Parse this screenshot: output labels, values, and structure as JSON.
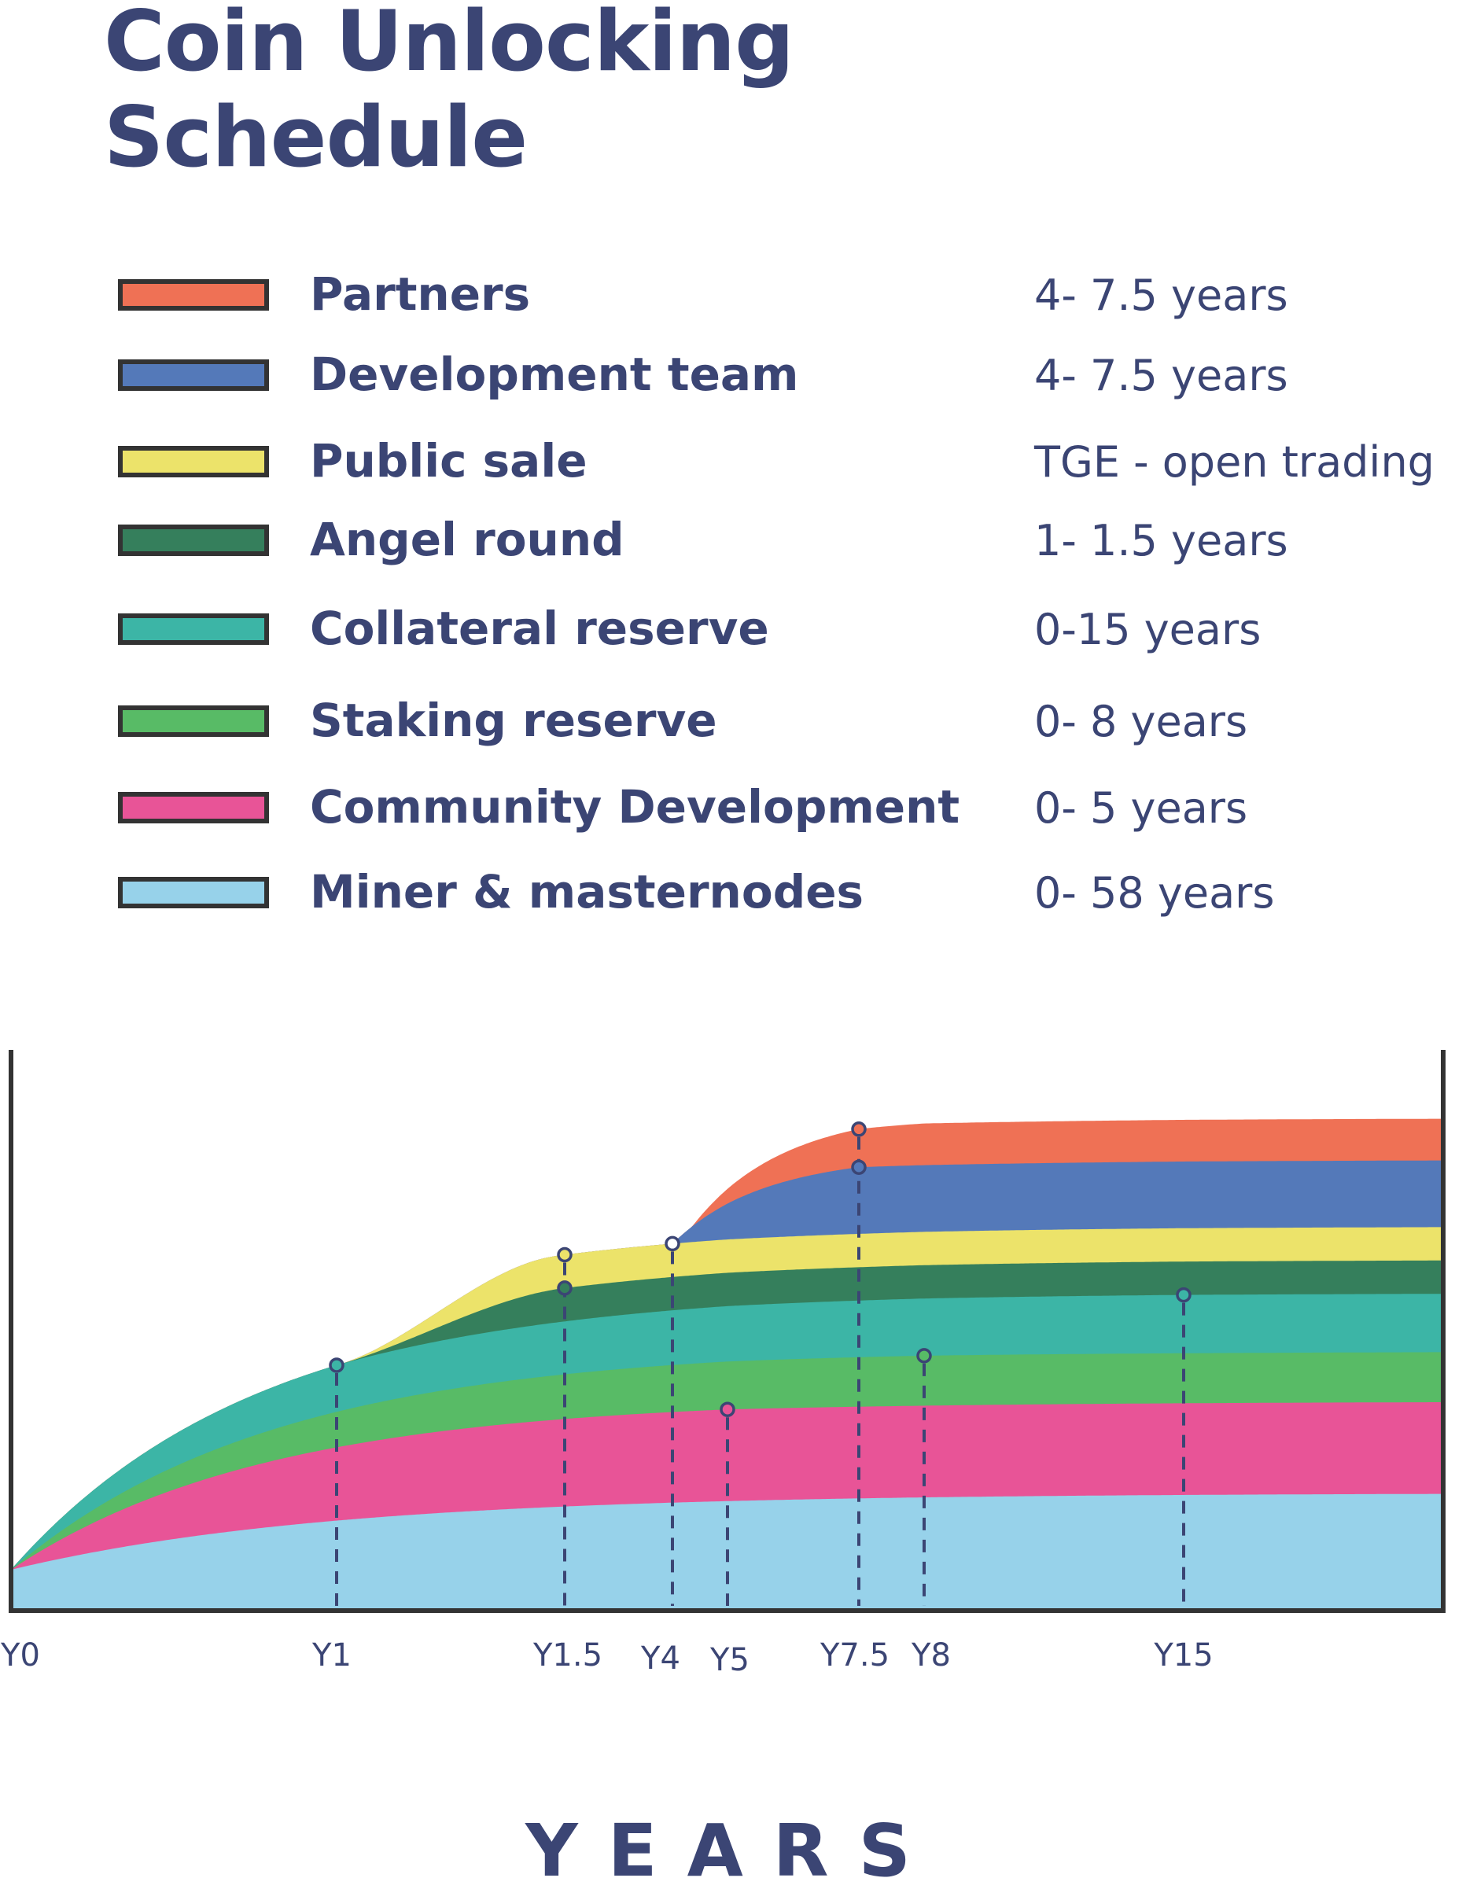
{
  "title_line1": "Coin Unlocking",
  "title_line2": "Schedule",
  "legend": [
    {
      "label": "Partners",
      "period": "4- 7.5 years",
      "color": "#ef7155"
    },
    {
      "label": "Development team",
      "period": "4- 7.5 years",
      "color": "#5479b9"
    },
    {
      "label": "Public sale",
      "period": "TGE - open trading",
      "color": "#ece36a"
    },
    {
      "label": "Angel round",
      "period": "1- 1.5 years",
      "color": "#357f5c"
    },
    {
      "label": "Collateral reserve",
      "period": "0-15 years",
      "color": "#3cb5a6"
    },
    {
      "label": "Staking reserve",
      "period": "0- 8 years",
      "color": "#58bb66"
    },
    {
      "label": "Community Development",
      "period": "0- 5 years",
      "color": "#e85497"
    },
    {
      "label": "Miner & masternodes",
      "period": "0- 58 years",
      "color": "#97d2ea"
    }
  ],
  "chart_data": {
    "type": "area",
    "stacked": true,
    "xlabel": "YEARS",
    "ylabel": "",
    "y_axis_ticks": false,
    "ticks": [
      "Y0",
      "Y1",
      "Y1.5",
      "Y4",
      "Y5",
      "Y7.5",
      "Y8",
      "Y15"
    ],
    "tick_colors": [
      "#3b4574",
      "#3b4574",
      "#3b4574",
      "#3b4574",
      "#3b4574",
      "#3b4574",
      "#3b4574",
      "#3b4574"
    ],
    "series": [
      {
        "name": "Miner & masternodes",
        "color": "#97d2ea",
        "unlock_start": "Y0",
        "unlock_end": "Y58 (beyond axis)",
        "final_share": 14
      },
      {
        "name": "Community Development",
        "color": "#e85497",
        "unlock_start": "Y0",
        "unlock_end": "Y5",
        "final_share": 11
      },
      {
        "name": "Staking reserve",
        "color": "#58bb66",
        "unlock_start": "Y0",
        "unlock_end": "Y8",
        "final_share": 6
      },
      {
        "name": "Collateral reserve",
        "color": "#3cb5a6",
        "unlock_start": "Y0",
        "unlock_end": "Y15",
        "final_share": 7
      },
      {
        "name": "Angel round",
        "color": "#357f5c",
        "unlock_start": "Y1",
        "unlock_end": "Y1.5",
        "final_share": 4
      },
      {
        "name": "Public sale",
        "color": "#ece36a",
        "unlock_start": "Y1",
        "unlock_end": "Y1.5",
        "final_share": 4
      },
      {
        "name": "Development team",
        "color": "#5479b9",
        "unlock_start": "Y4",
        "unlock_end": "Y7.5",
        "final_share": 8
      },
      {
        "name": "Partners",
        "color": "#ef7155",
        "unlock_start": "Y4",
        "unlock_end": "Y7.5",
        "final_share": 5
      }
    ]
  }
}
